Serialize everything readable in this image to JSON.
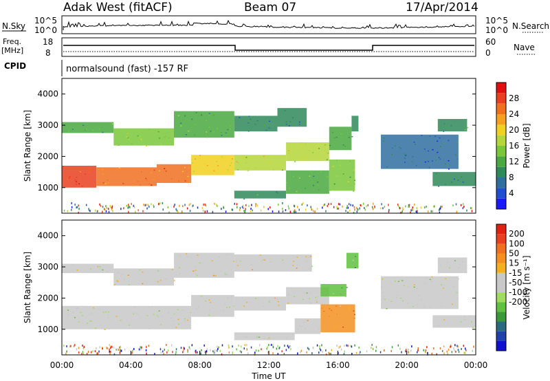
{
  "header": {
    "station": "Adak West (fitACF)",
    "beam": "Beam 07",
    "date": "17/Apr/2014"
  },
  "panels": {
    "nsky_label": "N.Sky",
    "nsearch_label": "N.Search",
    "noise_ticks_left": [
      "10^5",
      "10^0"
    ],
    "noise_ticks_right": [
      "10^5",
      "10^0"
    ],
    "freq_label_top": "Freq.",
    "freq_label_bottom": "[MHz]",
    "freq_ticks": [
      "18",
      "8"
    ],
    "nave_label": "Nave",
    "nave_ticks": [
      "60",
      "0"
    ],
    "cpid_label": "CPID",
    "cpid_text": "normalsound (fast) -157 RF"
  },
  "chart_data": [
    {
      "type": "heatmap",
      "name": "power",
      "ylabel": "Slant Range [km]",
      "xlabel": "Time UT",
      "yticks": [
        1000,
        2000,
        3000,
        4000
      ],
      "ylim": [
        180,
        4500
      ],
      "xlim": [
        0,
        24
      ],
      "colorbar": {
        "label": "Power [dB]",
        "ticks": [
          "4",
          "8",
          "12",
          "16",
          "20",
          "24",
          "28"
        ],
        "colors": [
          "#1a1aff",
          "#1f4fd0",
          "#2f6fa0",
          "#2f8a5a",
          "#4aa840",
          "#7ac83a",
          "#b5d63a",
          "#f0d020",
          "#f5a020",
          "#f07020",
          "#e84020",
          "#e01010"
        ]
      },
      "bands": [
        {
          "t0": 0.0,
          "t1": 2.0,
          "r0": 1000,
          "r1": 1700,
          "level": 0.93
        },
        {
          "t0": 2.0,
          "t1": 5.5,
          "r0": 1050,
          "r1": 1650,
          "level": 0.82
        },
        {
          "t0": 5.5,
          "t1": 7.5,
          "r0": 1150,
          "r1": 1750,
          "level": 0.78
        },
        {
          "t0": 7.5,
          "t1": 10.0,
          "r0": 1400,
          "r1": 2050,
          "level": 0.6
        },
        {
          "t0": 0.0,
          "t1": 3.0,
          "r0": 2750,
          "r1": 3100,
          "level": 0.35
        },
        {
          "t0": 3.0,
          "t1": 6.5,
          "r0": 2350,
          "r1": 2900,
          "level": 0.45
        },
        {
          "t0": 6.5,
          "t1": 10.0,
          "r0": 2600,
          "r1": 3450,
          "level": 0.4
        },
        {
          "t0": 10.0,
          "t1": 13.0,
          "r0": 1550,
          "r1": 2050,
          "level": 0.55
        },
        {
          "t0": 13.0,
          "t1": 15.5,
          "r0": 1850,
          "r1": 2450,
          "level": 0.5
        },
        {
          "t0": 15.5,
          "t1": 16.8,
          "r0": 2200,
          "r1": 2950,
          "level": 0.35
        },
        {
          "t0": 10.0,
          "t1": 12.5,
          "r0": 2800,
          "r1": 3300,
          "level": 0.3
        },
        {
          "t0": 12.5,
          "t1": 14.2,
          "r0": 2950,
          "r1": 3550,
          "level": 0.3
        },
        {
          "t0": 10.0,
          "t1": 13.0,
          "r0": 650,
          "r1": 900,
          "level": 0.3
        },
        {
          "t0": 13.0,
          "t1": 15.5,
          "r0": 800,
          "r1": 1550,
          "level": 0.38
        },
        {
          "t0": 15.5,
          "t1": 17.0,
          "r0": 900,
          "r1": 1900,
          "level": 0.48
        },
        {
          "t0": 16.8,
          "t1": 17.2,
          "r0": 2800,
          "r1": 3300,
          "level": 0.25
        },
        {
          "t0": 18.5,
          "t1": 23.0,
          "r0": 1600,
          "r1": 2700,
          "level": 0.15
        },
        {
          "t0": 21.5,
          "t1": 24.0,
          "r0": 1050,
          "r1": 1500,
          "level": 0.25
        },
        {
          "t0": 21.8,
          "t1": 23.5,
          "r0": 2800,
          "r1": 3200,
          "level": 0.25
        }
      ]
    },
    {
      "type": "heatmap",
      "name": "velocity",
      "ylabel": "Slant Range [km]",
      "xlabel": "Time UT",
      "xticks": [
        "00:00",
        "04:00",
        "08:00",
        "12:00",
        "16:00",
        "20:00",
        "00:00"
      ],
      "yticks": [
        1000,
        2000,
        3000,
        4000
      ],
      "ylim": [
        180,
        4500
      ],
      "xlim": [
        0,
        24
      ],
      "colorbar": {
        "label": "Velocity [m s⁻¹]",
        "ticks": [
          "200",
          "100",
          "50",
          "15",
          "-15",
          "-50",
          "-100",
          "-200"
        ],
        "colors": [
          "#1010d0",
          "#2040b0",
          "#2a6a80",
          "#3a9a3a",
          "#60c040",
          "#a0dc60",
          "#c8c8c8",
          "#c8c8c8",
          "#f5b020",
          "#f59020",
          "#f07020",
          "#e84020",
          "#e02010"
        ]
      },
      "bands": [
        {
          "t0": 0.0,
          "t1": 7.5,
          "r0": 1000,
          "r1": 1750,
          "level": 0.5
        },
        {
          "t0": 7.5,
          "t1": 10.0,
          "r0": 1400,
          "r1": 2100,
          "level": 0.5
        },
        {
          "t0": 0.0,
          "t1": 3.0,
          "r0": 2800,
          "r1": 3100,
          "level": 0.5
        },
        {
          "t0": 3.0,
          "t1": 6.5,
          "r0": 2400,
          "r1": 2950,
          "level": 0.55
        },
        {
          "t0": 6.5,
          "t1": 10.0,
          "r0": 2650,
          "r1": 3450,
          "level": 0.6
        },
        {
          "t0": 10.0,
          "t1": 13.0,
          "r0": 1600,
          "r1": 2050,
          "level": 0.5
        },
        {
          "t0": 13.0,
          "t1": 15.5,
          "r0": 1800,
          "r1": 2350,
          "level": 0.5
        },
        {
          "t0": 15.0,
          "t1": 16.5,
          "r0": 2050,
          "r1": 2450,
          "level": 0.3
        },
        {
          "t0": 10.0,
          "t1": 14.5,
          "r0": 2850,
          "r1": 3400,
          "level": 0.55
        },
        {
          "t0": 10.0,
          "t1": 13.5,
          "r0": 650,
          "r1": 900,
          "level": 0.5
        },
        {
          "t0": 13.5,
          "t1": 15.0,
          "r0": 850,
          "r1": 1350,
          "level": 0.62
        },
        {
          "t0": 15.0,
          "t1": 17.0,
          "r0": 900,
          "r1": 1800,
          "level": 0.72
        },
        {
          "t0": 16.5,
          "t1": 17.2,
          "r0": 2950,
          "r1": 3450,
          "level": 0.3
        },
        {
          "t0": 18.5,
          "t1": 23.0,
          "r0": 1650,
          "r1": 2700,
          "level": 0.5
        },
        {
          "t0": 21.5,
          "t1": 24.0,
          "r0": 1050,
          "r1": 1450,
          "level": 0.5
        },
        {
          "t0": 21.8,
          "t1": 23.5,
          "r0": 2800,
          "r1": 3300,
          "level": 0.5
        }
      ]
    }
  ]
}
